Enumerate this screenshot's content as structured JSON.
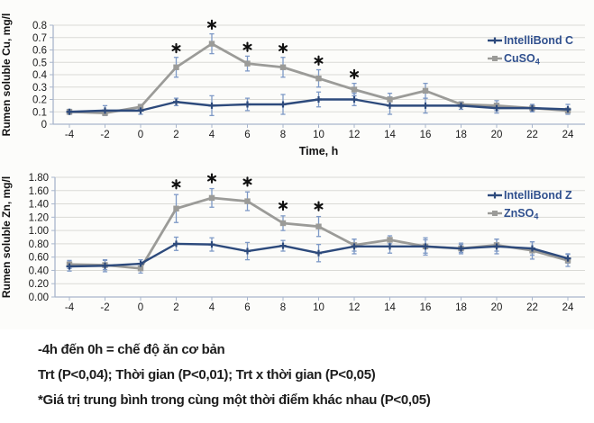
{
  "colors": {
    "blue": "#2d4a7c",
    "gray": "#9b9b98",
    "errorbar": "#7e99c6",
    "legend_text": "#30508e",
    "grid": "#dadad6",
    "axis": "#a9b6cc",
    "tick_text": "#1b1b1b",
    "star": "#111111"
  },
  "figure": {
    "notes": [
      "-4h đến 0h = chế độ ăn cơ bản",
      "Trt (P<0,04); Thời gian (P<0,01); Trt x thời gian (P<0,05)",
      "*Giá trị trung bình trong cùng một thời điểm khác nhau (P<0,05)"
    ]
  },
  "chart_data": [
    {
      "type": "line",
      "ylabel": "Rumen soluble Cu, mg/l",
      "xlabel": "Time, h",
      "x": [
        -4,
        -2,
        0,
        2,
        4,
        6,
        8,
        10,
        12,
        14,
        16,
        18,
        20,
        22,
        24
      ],
      "x_tick_labels": [
        "-4",
        "-2",
        "0",
        "2",
        "4",
        "6",
        "8",
        "10",
        "12",
        "14",
        "16",
        "18",
        "20",
        "22",
        "24"
      ],
      "ylim": [
        0,
        0.8
      ],
      "y_tick_step": 0.1,
      "y_tick_labels": [
        "0",
        "0.1",
        "0.2",
        "0.3",
        "0.4",
        "0.5",
        "0.6",
        "0.7",
        "0.8"
      ],
      "grid": true,
      "legend_position": "top-right",
      "series": [
        {
          "name": "IntelliBond C",
          "legend_label": "IntelliBond C",
          "legend_sub": "",
          "color_key": "blue",
          "marker": "plus",
          "values": [
            0.1,
            0.11,
            0.11,
            0.18,
            0.15,
            0.16,
            0.16,
            0.2,
            0.2,
            0.15,
            0.15,
            0.15,
            0.13,
            0.13,
            0.12
          ],
          "errors": [
            0.02,
            0.04,
            0.03,
            0.03,
            0.08,
            0.05,
            0.08,
            0.06,
            0.05,
            0.07,
            0.06,
            0.03,
            0.04,
            0.03,
            0.04
          ]
        },
        {
          "name": "CuSO4",
          "legend_label": "CuSO",
          "legend_sub": "4",
          "color_key": "gray",
          "marker": "square",
          "values": [
            0.1,
            0.09,
            0.14,
            0.46,
            0.65,
            0.49,
            0.46,
            0.37,
            0.28,
            0.2,
            0.27,
            0.16,
            0.15,
            0.13,
            0.11
          ],
          "errors": [
            0.01,
            0.02,
            0.02,
            0.08,
            0.08,
            0.06,
            0.08,
            0.07,
            0.05,
            0.05,
            0.06,
            0.02,
            0.04,
            0.02,
            0.02
          ]
        }
      ],
      "significance_marks": {
        "symbol": "*",
        "x": [
          2,
          4,
          6,
          8,
          10,
          12
        ]
      }
    },
    {
      "type": "line",
      "ylabel": "Rumen soluble Zn, mg/l",
      "xlabel": "",
      "x": [
        -4,
        -2,
        0,
        2,
        4,
        6,
        8,
        10,
        12,
        14,
        16,
        18,
        20,
        22,
        24
      ],
      "x_tick_labels": [
        "-4",
        "-2",
        "0",
        "2",
        "4",
        "6",
        "8",
        "10",
        "12",
        "14",
        "16",
        "18",
        "20",
        "22",
        "24"
      ],
      "ylim": [
        0,
        1.8
      ],
      "y_tick_step": 0.2,
      "y_tick_labels": [
        "0.00",
        "0.20",
        "0.40",
        "0.60",
        "0.80",
        "1.00",
        "1.20",
        "1.40",
        "1.60",
        "1.80"
      ],
      "grid": true,
      "legend_position": "top-right",
      "series": [
        {
          "name": "IntelliBond Z",
          "legend_label": "IntelliBond Z",
          "legend_sub": "",
          "color_key": "blue",
          "marker": "plus",
          "values": [
            0.46,
            0.47,
            0.5,
            0.8,
            0.79,
            0.69,
            0.77,
            0.66,
            0.76,
            0.76,
            0.76,
            0.73,
            0.76,
            0.73,
            0.58
          ],
          "errors": [
            0.07,
            0.09,
            0.06,
            0.1,
            0.1,
            0.13,
            0.08,
            0.13,
            0.11,
            0.1,
            0.13,
            0.08,
            0.11,
            0.1,
            0.07
          ]
        },
        {
          "name": "ZnSO4",
          "legend_label": "ZnSO",
          "legend_sub": "4",
          "color_key": "gray",
          "marker": "square",
          "values": [
            0.49,
            0.48,
            0.43,
            1.33,
            1.49,
            1.44,
            1.11,
            1.06,
            0.78,
            0.86,
            0.76,
            0.73,
            0.78,
            0.7,
            0.55
          ],
          "errors": [
            0.06,
            0.07,
            0.07,
            0.21,
            0.14,
            0.14,
            0.11,
            0.15,
            0.09,
            0.06,
            0.1,
            0.06,
            0.09,
            0.13,
            0.09
          ]
        }
      ],
      "significance_marks": {
        "symbol": "*",
        "x": [
          2,
          4,
          6,
          8,
          10
        ]
      }
    }
  ]
}
